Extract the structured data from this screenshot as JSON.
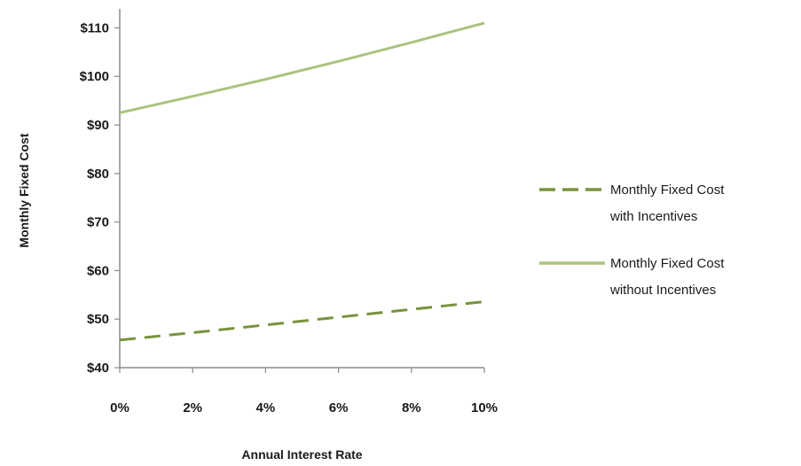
{
  "chart_data": {
    "type": "line",
    "xlabel": "Annual Interest Rate",
    "ylabel": "Monthly Fixed Cost",
    "x": [
      0,
      2,
      4,
      6,
      8,
      10
    ],
    "x_tick_labels": [
      "0%",
      "2%",
      "4%",
      "6%",
      "8%",
      "10%"
    ],
    "y_tick_labels": [
      "$40",
      "$50",
      "$60",
      "$70",
      "$80",
      "$90",
      "$100",
      "$110"
    ],
    "y_ticks": [
      40,
      50,
      60,
      70,
      80,
      90,
      100,
      110
    ],
    "xlim": [
      0,
      10
    ],
    "ylim": [
      40,
      113
    ],
    "grid": false,
    "legend_position": "right",
    "series": [
      {
        "name": "Monthly Fixed Cost with Incentives",
        "legend_lines": [
          "Monthly Fixed Cost",
          "with Incentives"
        ],
        "style": "dashed",
        "color": "#77933c",
        "values": [
          45.7,
          47.2,
          48.8,
          50.4,
          52.0,
          53.6
        ]
      },
      {
        "name": "Monthly Fixed Cost without Incentives",
        "legend_lines": [
          "Monthly Fixed Cost",
          "without Incentives"
        ],
        "style": "solid",
        "color": "#a9c47f",
        "values": [
          92.5,
          95.9,
          99.4,
          103.1,
          107.0,
          111.0
        ]
      }
    ]
  }
}
